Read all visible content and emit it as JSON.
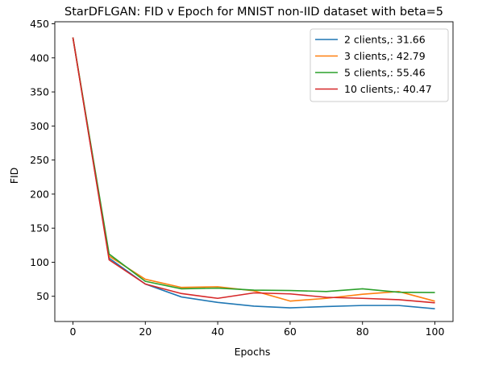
{
  "chart_data": {
    "type": "line",
    "title": "StarDFLGAN: FID v Epoch for MNIST non-IID dataset with beta=5",
    "xlabel": "Epochs",
    "ylabel": "FID",
    "xlim": [
      -5,
      105
    ],
    "ylim": [
      13,
      453
    ],
    "xticks": [
      0,
      20,
      40,
      60,
      80,
      100
    ],
    "yticks": [
      50,
      100,
      150,
      200,
      250,
      300,
      350,
      400,
      450
    ],
    "grid": false,
    "legend_position": "top-right",
    "x": [
      0,
      10,
      20,
      30,
      40,
      50,
      60,
      70,
      80,
      90,
      100
    ],
    "series": [
      {
        "name": "2 clients,: 31.66",
        "color": "#1f77b4",
        "values": [
          430,
          106,
          68,
          49,
          41,
          35.5,
          33,
          35,
          36.5,
          36.5,
          31.66
        ]
      },
      {
        "name": "3 clients,: 42.79",
        "color": "#ff7f0e",
        "values": [
          430,
          109,
          75,
          63,
          64,
          58,
          43,
          47,
          53,
          57,
          42.79
        ]
      },
      {
        "name": "5 clients,: 55.46",
        "color": "#2ca02c",
        "values": [
          430,
          112,
          72,
          61,
          62,
          59,
          58.5,
          57,
          61,
          56,
          55.46
        ]
      },
      {
        "name": "10 clients,: 40.47",
        "color": "#d62728",
        "values": [
          430,
          103.5,
          68,
          54,
          47,
          55,
          53.5,
          48.5,
          47,
          45,
          40.47
        ]
      }
    ]
  }
}
